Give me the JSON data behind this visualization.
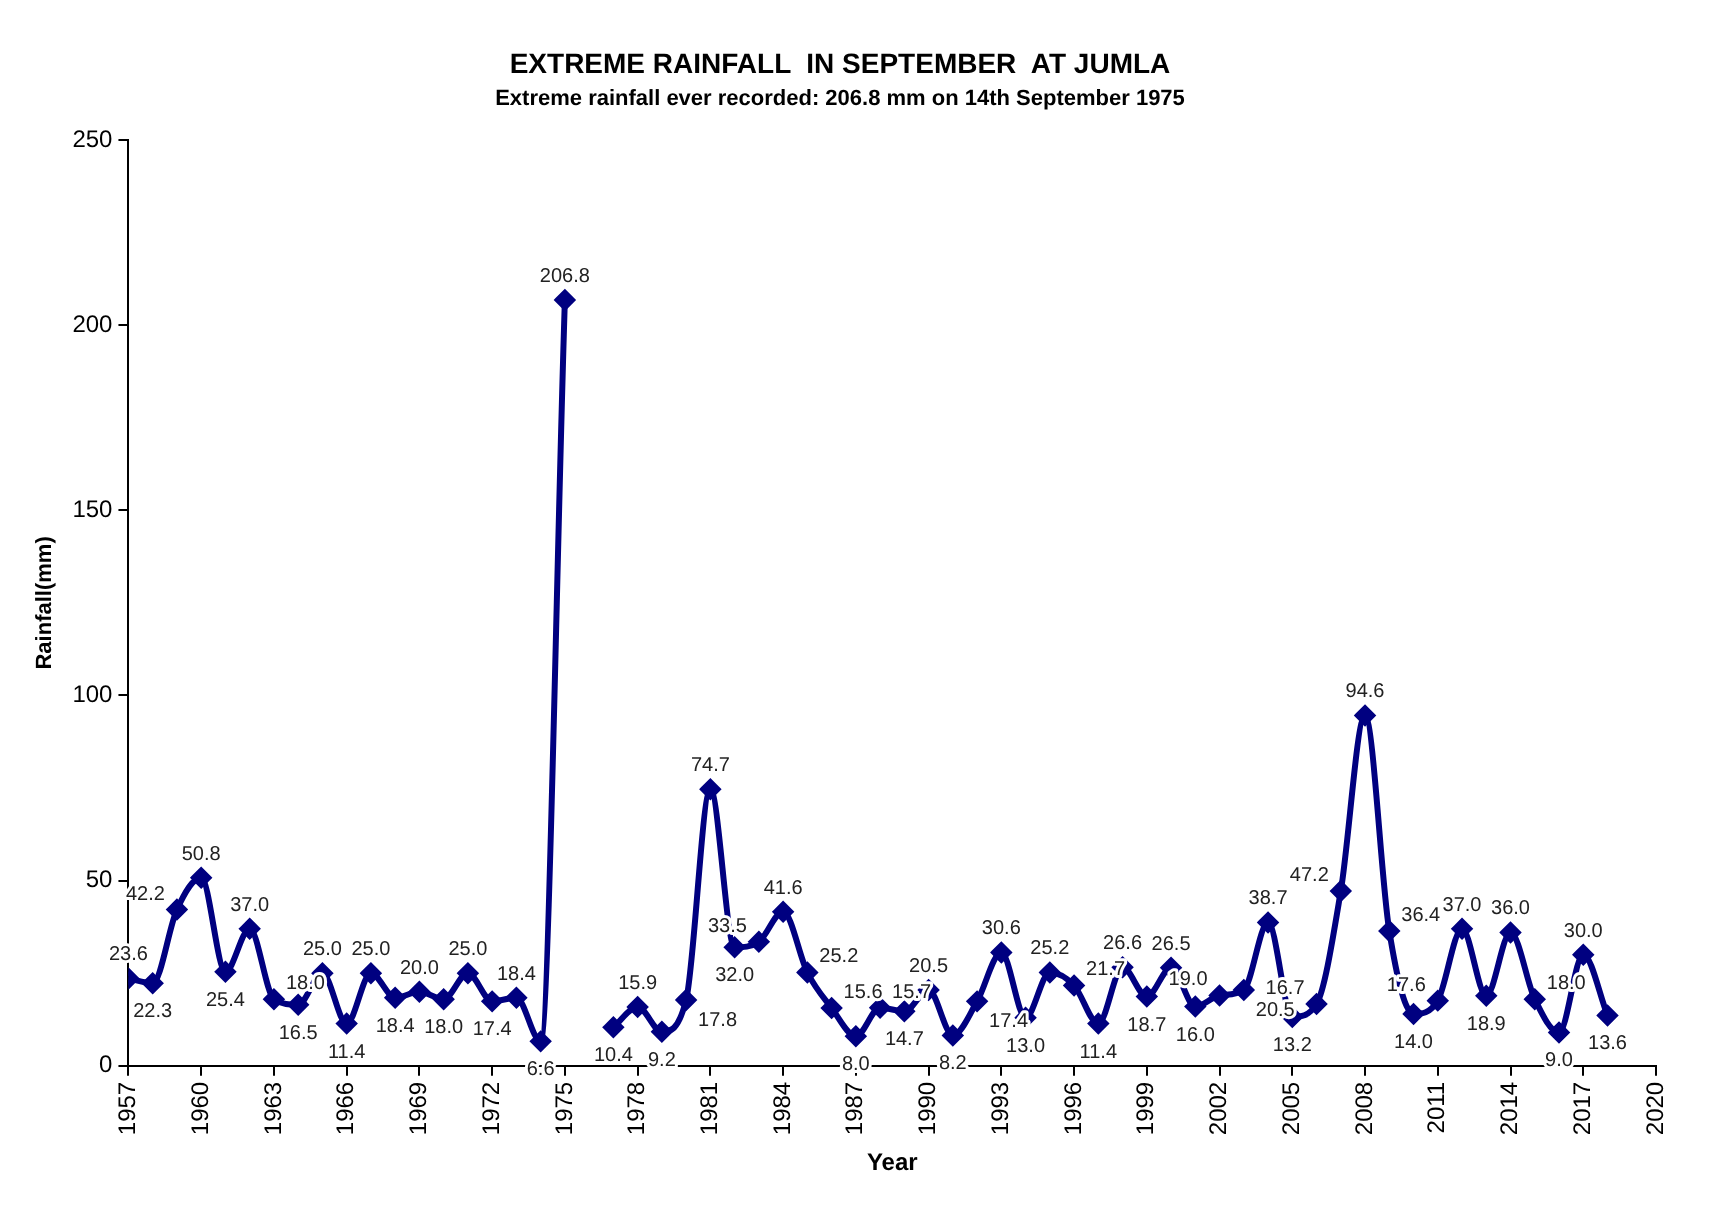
{
  "chart_data": {
    "type": "line",
    "title": "EXTREME RAINFALL  IN SEPTEMBER  AT JUMLA",
    "subtitle": "Extreme rainfall ever recorded: 206.8 mm on 14th September 1975",
    "xlabel": "Year",
    "ylabel": "Rainfall(mm)",
    "x": [
      1957,
      1958,
      1959,
      1960,
      1961,
      1962,
      1963,
      1964,
      1965,
      1966,
      1967,
      1968,
      1969,
      1970,
      1971,
      1972,
      1973,
      1974,
      1975,
      1976,
      1977,
      1978,
      1979,
      1980,
      1981,
      1982,
      1983,
      1984,
      1985,
      1986,
      1987,
      1988,
      1989,
      1990,
      1991,
      1992,
      1993,
      1994,
      1995,
      1996,
      1997,
      1998,
      1999,
      2000,
      2001,
      2002,
      2003,
      2004,
      2005,
      2006,
      2007,
      2008,
      2009,
      2010,
      2011,
      2012,
      2013,
      2014,
      2015,
      2016,
      2017,
      2018
    ],
    "series": [
      {
        "color": "#000080",
        "value_labels": [
          "23.6",
          "22.3",
          "42.2",
          "50.8",
          "25.4",
          "37.0",
          "18.0",
          "16.5",
          "25.0",
          "11.4",
          "25.0",
          "18.4",
          "20.0",
          "18.0",
          "25.0",
          "17.4",
          "18.4",
          "6.6",
          "206.8",
          null,
          "10.4",
          "15.9",
          "9.2",
          "17.8",
          "74.7",
          "32.0",
          "33.5",
          "41.6",
          "25.2",
          "15.6",
          "8.0",
          "15.7",
          "14.7",
          "20.5",
          "8.2",
          "17.4",
          "30.6",
          "13.0",
          "25.2",
          "21.7",
          "11.4",
          "26.6",
          "18.7",
          "26.5",
          "16.0",
          "19.0",
          "20.5",
          "38.7",
          "13.2",
          "16.7",
          "47.2",
          "94.6",
          "36.4",
          "14.0",
          "17.6",
          "37.0",
          "18.9",
          "36.0",
          "18.0",
          "9.0",
          "30.0",
          "13.6"
        ],
        "values": [
          23.6,
          22.3,
          42.2,
          50.8,
          25.4,
          37.0,
          18.0,
          16.5,
          25.0,
          11.4,
          25.0,
          18.4,
          20.0,
          18.0,
          25.0,
          17.4,
          18.4,
          6.6,
          206.8,
          null,
          10.4,
          15.9,
          9.2,
          17.8,
          74.7,
          32.0,
          33.5,
          41.6,
          25.2,
          15.6,
          8.0,
          15.7,
          14.7,
          20.5,
          8.2,
          17.4,
          30.6,
          13.0,
          25.2,
          21.7,
          11.4,
          26.6,
          18.7,
          26.5,
          16.0,
          19.0,
          20.5,
          38.7,
          13.2,
          16.7,
          47.2,
          94.6,
          36.4,
          14.0,
          17.6,
          37.0,
          18.9,
          36.0,
          18.0,
          9.0,
          30.0,
          13.6
        ]
      }
    ],
    "xlim": [
      1957,
      2020
    ],
    "xticks": [
      1957,
      1960,
      1963,
      1966,
      1969,
      1972,
      1975,
      1978,
      1981,
      1984,
      1987,
      1990,
      1993,
      1996,
      1999,
      2002,
      2005,
      2008,
      2011,
      2014,
      2017,
      2020
    ],
    "ylim": [
      0,
      250
    ],
    "yticks": [
      0,
      50,
      100,
      150,
      200,
      250
    ],
    "grid": false,
    "legend": false,
    "marker": "diamond",
    "line_style": "solid"
  }
}
